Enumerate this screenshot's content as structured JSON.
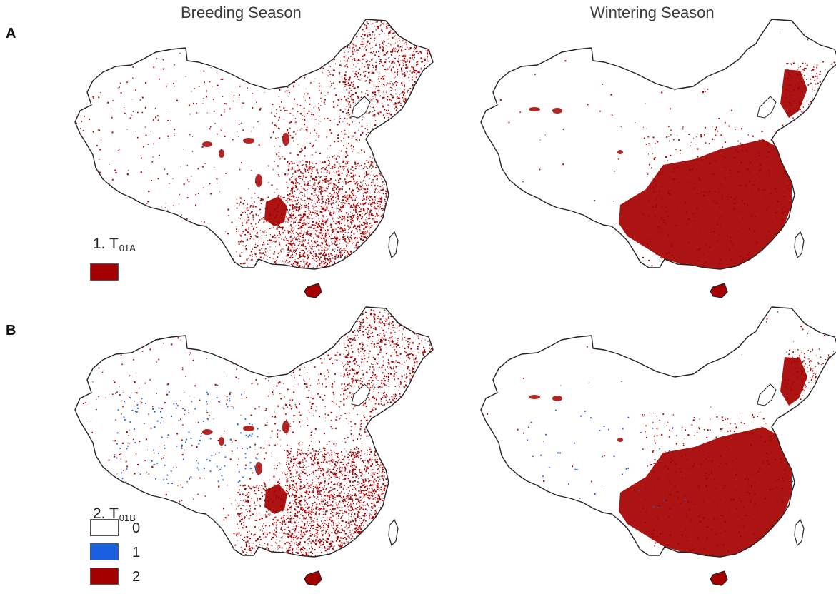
{
  "columns": {
    "breeding": "Breeding Season",
    "wintering": "Wintering Season"
  },
  "panels": {
    "a": {
      "letter": "A",
      "legend_title": "1. T",
      "legend_subscript": "01A",
      "legend_items": [
        {
          "value": "",
          "color": "#a50000"
        }
      ]
    },
    "b": {
      "letter": "B",
      "legend_title": "2. T",
      "legend_subscript": "01B",
      "legend_items": [
        {
          "value": "0",
          "color": "#ffffff"
        },
        {
          "value": "1",
          "color": "#1a5fe0"
        },
        {
          "value": "2",
          "color": "#a50000"
        }
      ]
    }
  },
  "colors": {
    "class_2": "#a50000",
    "class_1": "#1a5fe0",
    "outline": "#222222"
  }
}
